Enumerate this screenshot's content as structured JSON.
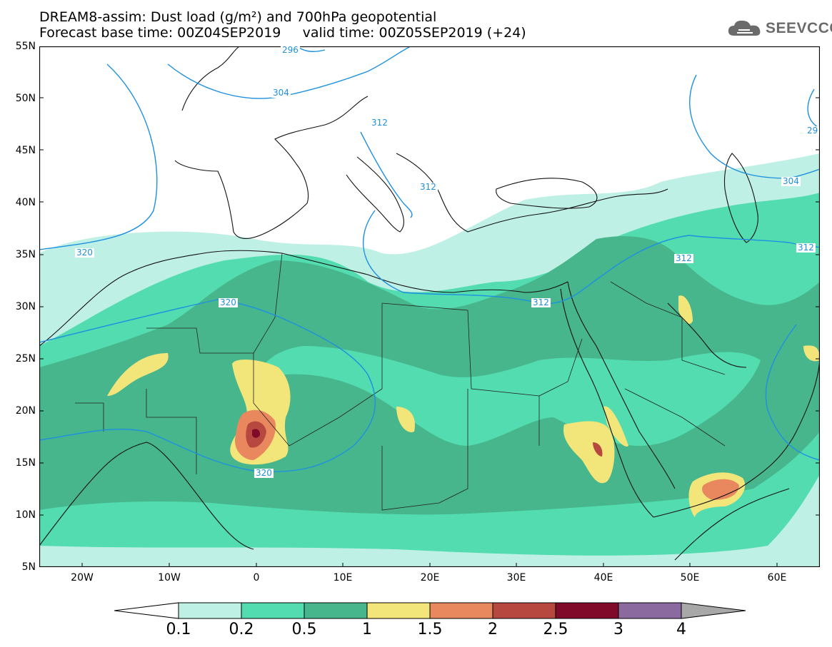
{
  "header": {
    "title_line1": "DREAM8-assim: Dust load (g/m²) and 700hPa geopotential",
    "title_line2": "Forecast base time: 00Z04SEP2019     valid time: 00Z05SEP2019 (+24)"
  },
  "logo": {
    "text": "SEEVCCC",
    "icon": "cloud-icon"
  },
  "map": {
    "lat_labels": [
      "55N",
      "50N",
      "45N",
      "40N",
      "35N",
      "30N",
      "25N",
      "20N",
      "15N",
      "10N",
      "5N"
    ],
    "lon_labels": [
      "20W",
      "10W",
      "0",
      "10E",
      "20E",
      "30E",
      "40E",
      "50E",
      "60E"
    ],
    "contour_labels": [
      "296",
      "304",
      "312",
      "312",
      "320",
      "320",
      "312",
      "312",
      "320",
      "304",
      "312",
      "29"
    ],
    "colors": {
      "contour": "#1e90e0",
      "coast": "#111111"
    }
  },
  "legend": {
    "levels": [
      "0.1",
      "0.2",
      "0.5",
      "1",
      "1.5",
      "2",
      "2.5",
      "3",
      "4"
    ],
    "colors": [
      "#bff0e5",
      "#52dcb0",
      "#48b68c",
      "#f2e57a",
      "#e9875e",
      "#b74840",
      "#800a2a",
      "#8b6aa0",
      "#a8a8a8"
    ]
  }
}
